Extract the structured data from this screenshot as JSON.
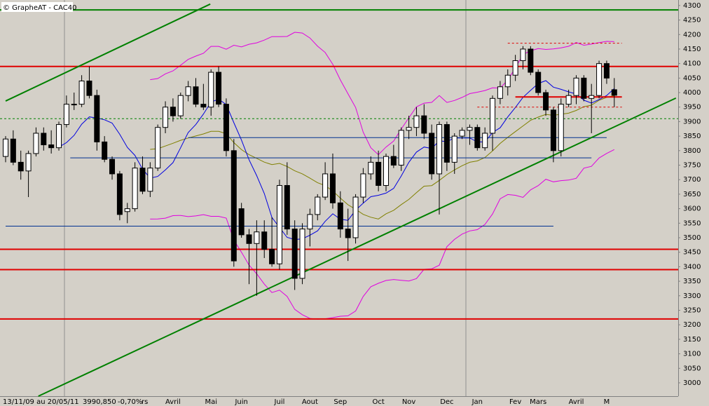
{
  "chart_data": {
    "type": "candlestick",
    "title": "© GrapheAT - CAC40",
    "footer": {
      "period": "13/11/09 au 20/05/11",
      "last": "3990,850",
      "change": "-0,70%",
      "tag": "rs"
    },
    "categories": [
      null,
      null,
      null,
      null,
      null,
      null,
      null,
      null,
      null,
      null,
      null,
      null,
      null,
      null,
      null,
      null,
      null,
      null,
      null,
      null,
      null,
      null,
      "Avril",
      null,
      null,
      null,
      null,
      "Mai",
      null,
      null,
      null,
      "Juin",
      null,
      null,
      null,
      null,
      "Juil",
      null,
      null,
      null,
      "Aout",
      null,
      null,
      null,
      "Sep",
      null,
      null,
      null,
      null,
      "Oct",
      null,
      null,
      null,
      "Nov",
      null,
      null,
      null,
      null,
      "Dec",
      null,
      null,
      null,
      "Jan",
      null,
      null,
      null,
      null,
      "Fev",
      null,
      null,
      "Mars",
      null,
      null,
      null,
      null,
      "Avril",
      null,
      null,
      null,
      "M",
      null
    ],
    "ohlc": [
      [
        3780,
        3850,
        3760,
        3840
      ],
      [
        3840,
        3870,
        3750,
        3760
      ],
      [
        3760,
        3800,
        3700,
        3730
      ],
      [
        3730,
        3800,
        3640,
        3790
      ],
      [
        3790,
        3880,
        3780,
        3860
      ],
      [
        3860,
        3880,
        3800,
        3820
      ],
      [
        3820,
        3870,
        3790,
        3810
      ],
      [
        3810,
        3900,
        3800,
        3890
      ],
      [
        3890,
        3990,
        3880,
        3960
      ],
      [
        3960,
        4000,
        3940,
        3960
      ],
      [
        3960,
        4060,
        3950,
        4040
      ],
      [
        4040,
        4090,
        3980,
        3990
      ],
      [
        3990,
        4010,
        3800,
        3830
      ],
      [
        3830,
        3850,
        3760,
        3770
      ],
      [
        3770,
        3780,
        3700,
        3720
      ],
      [
        3720,
        3730,
        3560,
        3580
      ],
      [
        3590,
        3620,
        3550,
        3600
      ],
      [
        3600,
        3760,
        3590,
        3740
      ],
      [
        3740,
        3780,
        3650,
        3660
      ],
      [
        3660,
        3760,
        3640,
        3740
      ],
      [
        3740,
        3890,
        3730,
        3880
      ],
      [
        3880,
        3970,
        3860,
        3950
      ],
      [
        3950,
        3980,
        3900,
        3920
      ],
      [
        3920,
        4000,
        3910,
        3990
      ],
      [
        3990,
        4040,
        3970,
        4020
      ],
      [
        4020,
        4050,
        3950,
        3960
      ],
      [
        3960,
        4030,
        3940,
        3950
      ],
      [
        3950,
        4080,
        3920,
        4070
      ],
      [
        4070,
        4090,
        3950,
        3960
      ],
      [
        3960,
        3980,
        3780,
        3800
      ],
      [
        3800,
        3840,
        3400,
        3420
      ],
      [
        3600,
        3620,
        3500,
        3510
      ],
      [
        3510,
        3530,
        3340,
        3480
      ],
      [
        3480,
        3560,
        3300,
        3520
      ],
      [
        3520,
        3560,
        3430,
        3460
      ],
      [
        3460,
        3570,
        3400,
        3410
      ],
      [
        3410,
        3700,
        3390,
        3680
      ],
      [
        3680,
        3760,
        3510,
        3530
      ],
      [
        3530,
        3560,
        3320,
        3360
      ],
      [
        3360,
        3550,
        3340,
        3530
      ],
      [
        3530,
        3600,
        3470,
        3580
      ],
      [
        3580,
        3650,
        3560,
        3640
      ],
      [
        3640,
        3760,
        3630,
        3720
      ],
      [
        3720,
        3790,
        3600,
        3620
      ],
      [
        3620,
        3660,
        3500,
        3530
      ],
      [
        3530,
        3600,
        3420,
        3500
      ],
      [
        3500,
        3650,
        3480,
        3640
      ],
      [
        3640,
        3740,
        3620,
        3720
      ],
      [
        3720,
        3780,
        3700,
        3760
      ],
      [
        3760,
        3800,
        3660,
        3680
      ],
      [
        3680,
        3790,
        3660,
        3780
      ],
      [
        3780,
        3820,
        3740,
        3750
      ],
      [
        3750,
        3880,
        3730,
        3870
      ],
      [
        3870,
        3920,
        3840,
        3880
      ],
      [
        3880,
        3950,
        3850,
        3920
      ],
      [
        3920,
        3960,
        3840,
        3860
      ],
      [
        3860,
        3890,
        3700,
        3720
      ],
      [
        3720,
        3900,
        3580,
        3890
      ],
      [
        3890,
        3900,
        3730,
        3760
      ],
      [
        3760,
        3860,
        3720,
        3850
      ],
      [
        3850,
        3880,
        3840,
        3870
      ],
      [
        3870,
        3890,
        3820,
        3880
      ],
      [
        3880,
        3890,
        3800,
        3810
      ],
      [
        3810,
        3880,
        3800,
        3860
      ],
      [
        3860,
        3990,
        3800,
        3980
      ],
      [
        3980,
        4040,
        3960,
        4020
      ],
      [
        4020,
        4080,
        3990,
        4060
      ],
      [
        4060,
        4130,
        4040,
        4110
      ],
      [
        4110,
        4160,
        4080,
        4150
      ],
      [
        4150,
        4160,
        4060,
        4070
      ],
      [
        4070,
        4080,
        3990,
        4000
      ],
      [
        4000,
        4010,
        3920,
        3940
      ],
      [
        3940,
        3950,
        3760,
        3800
      ],
      [
        3800,
        3980,
        3780,
        3960
      ],
      [
        3960,
        4010,
        3950,
        3990
      ],
      [
        3990,
        4060,
        3960,
        4050
      ],
      [
        4050,
        4060,
        3970,
        3980
      ],
      [
        3980,
        4030,
        3860,
        3990
      ],
      [
        3990,
        4110,
        3980,
        4100
      ],
      [
        4100,
        4110,
        4030,
        4050
      ],
      [
        4010,
        4050,
        3950,
        3990.85
      ]
    ],
    "ylim": [
      2954,
      4319
    ],
    "yticks": [
      3000,
      3050,
      3100,
      3150,
      3200,
      3250,
      3300,
      3350,
      3400,
      3450,
      3500,
      3550,
      3600,
      3650,
      3700,
      3750,
      3800,
      3850,
      3900,
      3950,
      4000,
      4050,
      4100,
      4150,
      4200,
      4250,
      4300
    ],
    "levels": [
      {
        "value": 4285,
        "color": "#008000"
      },
      {
        "value": 4090,
        "color": "#e00000"
      },
      {
        "value": 3460,
        "color": "#e00000"
      },
      {
        "value": 3390,
        "color": "#e00000"
      },
      {
        "value": 3220,
        "color": "#e00000"
      },
      {
        "value": 3910,
        "color": "#008000",
        "dashed": true
      },
      {
        "value": 4170,
        "color": "#e00000",
        "dashed": true,
        "from": 66,
        "to": 81
      },
      {
        "value": 3950,
        "color": "#e00000",
        "dashed": true,
        "from": 62,
        "to": 81
      },
      {
        "value": 3985,
        "color": "#e00000",
        "from": 67,
        "to": 81
      },
      {
        "value": 3845,
        "color": "#003090",
        "from": 24,
        "to": 79
      },
      {
        "value": 3775,
        "color": "#003090",
        "from": 8.5,
        "to": 77
      },
      {
        "value": 3540,
        "color": "#003090",
        "from": 0,
        "to": 72
      }
    ],
    "trendlines": [
      {
        "x": [
          4.3,
          88.1
        ],
        "y": [
          2954,
          3981
        ],
        "color": "#008000"
      },
      {
        "x": [
          0,
          26.9
        ],
        "y": [
          3971,
          4305
        ],
        "color": "#008000"
      }
    ],
    "colors": {
      "up": "#ffffff",
      "down": "#000000",
      "ma_short": "#0000e0",
      "ma_long": "#808000",
      "bands": "#e000e0"
    }
  }
}
